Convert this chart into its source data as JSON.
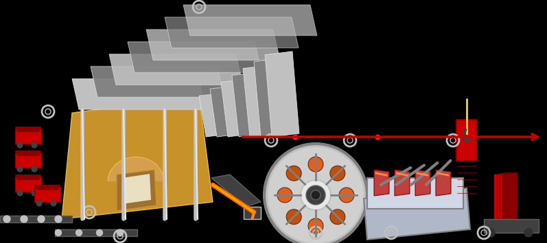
{
  "bg_color": "#000000",
  "furnace_color": "#c8922a",
  "furnace_light": "#e8b84a",
  "silver_color": "#c0c0c0",
  "silver_dark": "#808080",
  "silver_light": "#e8e8e8",
  "red_color": "#cc0000",
  "red_dark": "#8b0000",
  "red_bright": "#ff2020",
  "arrow_color": "#cc0000",
  "circle_color": "#c0c0c0",
  "circle_bg": "#000000",
  "white": "#ffffff",
  "black": "#000000",
  "orange": "#ff6600",
  "yellow": "#ffdd00",
  "gray_dark": "#404040",
  "gray_med": "#606060",
  "gray_light": "#909090"
}
